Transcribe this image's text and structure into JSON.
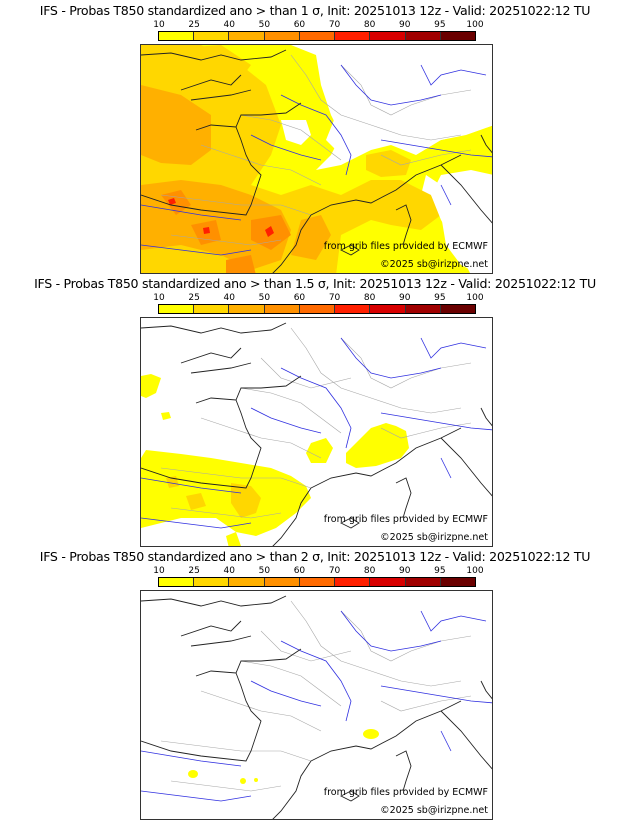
{
  "colorbar": {
    "ticks": [
      "10",
      "25",
      "40",
      "50",
      "60",
      "70",
      "80",
      "90",
      "95",
      "100"
    ],
    "colors": [
      "#ffff00",
      "#ffd700",
      "#ffb000",
      "#ff9000",
      "#ff6a00",
      "#ff2000",
      "#d80000",
      "#a00000",
      "#6a0000"
    ]
  },
  "panels": [
    {
      "title": "IFS - Probas T850  standardized ano > than 1 σ, Init: 20251013 12z - Valid: 20251022:12 TU",
      "threshold": "1 σ",
      "credit_source": "from grib files provided by ECMWF",
      "credit_copyright": "©2025 sb@irizpne.net"
    },
    {
      "title": "IFS - Probas T850  standardized ano > than 1.5 σ, Init: 20251013 12z - Valid: 20251022:12 TU",
      "threshold": "1.5 σ",
      "credit_source": "from grib files provided by ECMWF",
      "credit_copyright": "©2025 sb@irizpne.net"
    },
    {
      "title": "IFS - Probas T850  standardized ano > than 2 σ, Init: 20251013 12z - Valid: 20251022:12 TU",
      "threshold": "2 σ",
      "credit_source": "from grib files provided by ECMWF",
      "credit_copyright": "©2025 sb@irizpne.net"
    }
  ],
  "colors": {
    "coast": "#222222",
    "border": "#a8a8a8",
    "river": "#3030e0"
  }
}
